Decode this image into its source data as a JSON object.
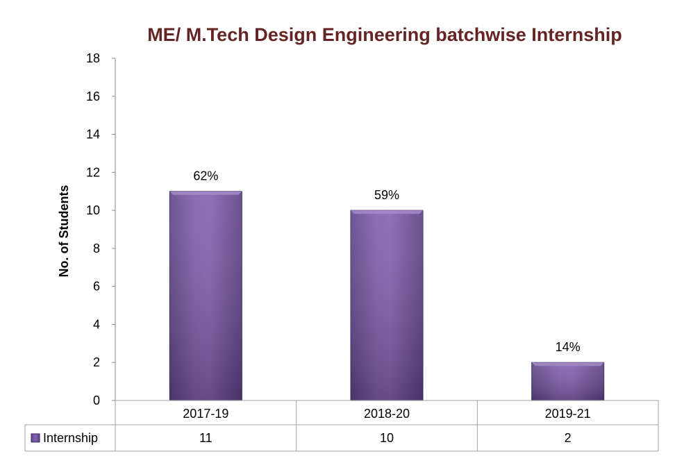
{
  "chart_data": {
    "type": "bar",
    "title": "ME/ M.Tech Design Engineering batchwise Internship",
    "xlabel": "",
    "ylabel": "No. of Students",
    "ylim": [
      0,
      18
    ],
    "yticks": [
      0,
      2,
      4,
      6,
      8,
      10,
      12,
      14,
      16,
      18
    ],
    "categories": [
      "2017-19",
      "2018-20",
      "2019-21"
    ],
    "series": [
      {
        "name": "Internship",
        "values": [
          11,
          10,
          2
        ],
        "data_labels": [
          "62%",
          "59%",
          "14%"
        ],
        "color": "#7B5BA6"
      }
    ],
    "grid": false,
    "legend": "data-table",
    "data_table": {
      "rows": [
        {
          "series": "Internship",
          "cells": [
            "11",
            "10",
            "2"
          ]
        }
      ]
    }
  }
}
